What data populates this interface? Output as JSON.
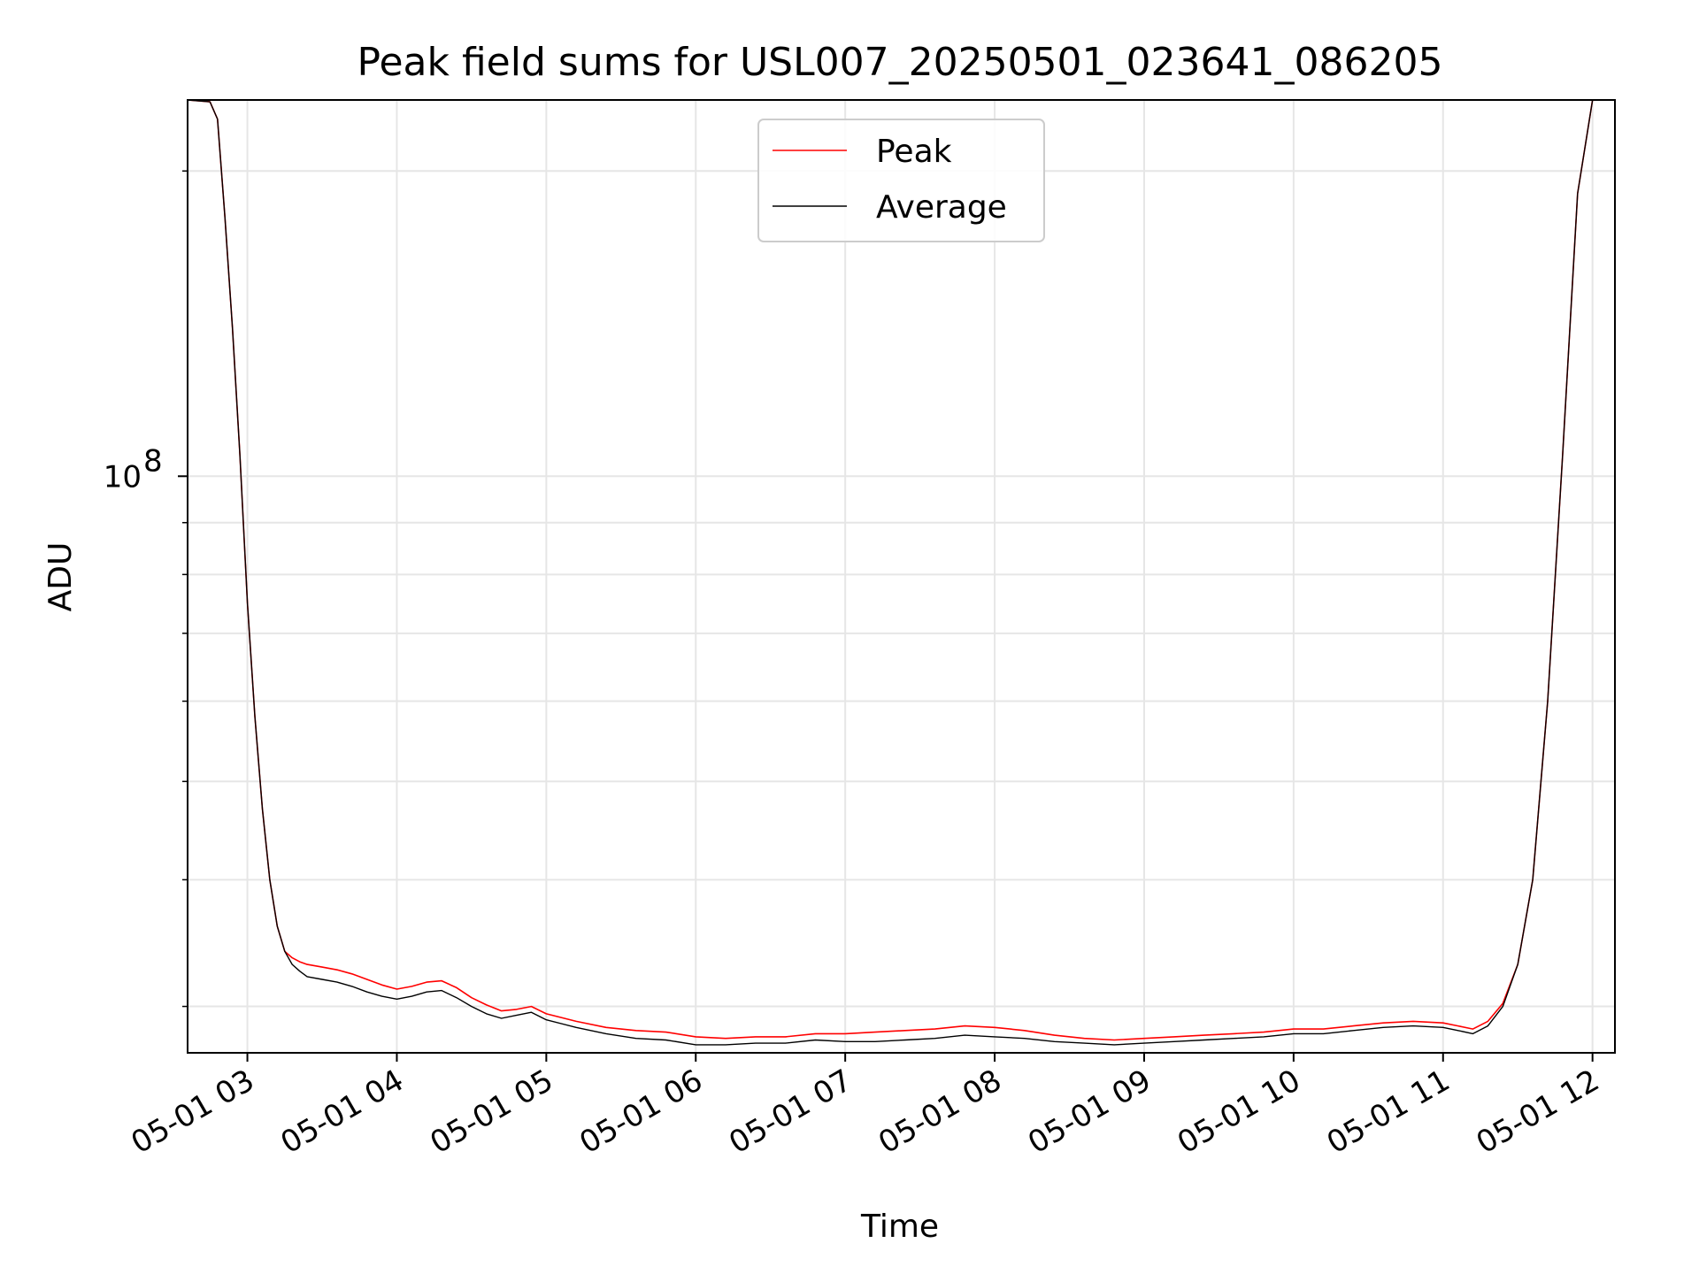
{
  "chart_data": {
    "type": "line",
    "title": "Peak field sums for USL007_20250501_023641_086205",
    "xlabel": "Time",
    "ylabel": "ADU",
    "y_scale": "log",
    "ylim": [
      27000000,
      235000000
    ],
    "xlim_hours": [
      2.6,
      12.15
    ],
    "grid": true,
    "legend_position": "top-center",
    "x_ticks": [
      {
        "value": 3,
        "label": "05-01 03"
      },
      {
        "value": 4,
        "label": "05-01 04"
      },
      {
        "value": 5,
        "label": "05-01 05"
      },
      {
        "value": 6,
        "label": "05-01 06"
      },
      {
        "value": 7,
        "label": "05-01 07"
      },
      {
        "value": 8,
        "label": "05-01 08"
      },
      {
        "value": 9,
        "label": "05-01 09"
      },
      {
        "value": 10,
        "label": "05-01 10"
      },
      {
        "value": 11,
        "label": "05-01 11"
      },
      {
        "value": 12,
        "label": "05-01 12"
      }
    ],
    "y_major_ticks": [
      {
        "value": 100000000,
        "base": "10",
        "exponent": "8"
      }
    ],
    "y_minor_ticks": [
      30000000,
      40000000,
      50000000,
      60000000,
      70000000,
      80000000,
      90000000,
      200000000
    ],
    "series": [
      {
        "name": "Peak",
        "color": "#ff0000",
        "x": [
          2.6,
          2.75,
          2.8,
          2.85,
          2.9,
          2.95,
          3.0,
          3.05,
          3.1,
          3.15,
          3.2,
          3.25,
          3.3,
          3.35,
          3.4,
          3.5,
          3.6,
          3.7,
          3.8,
          3.9,
          4.0,
          4.1,
          4.2,
          4.3,
          4.4,
          4.5,
          4.6,
          4.7,
          4.8,
          4.9,
          5.0,
          5.2,
          5.4,
          5.6,
          5.8,
          6.0,
          6.2,
          6.4,
          6.6,
          6.8,
          7.0,
          7.2,
          7.4,
          7.6,
          7.8,
          8.0,
          8.2,
          8.4,
          8.6,
          8.8,
          9.0,
          9.2,
          9.4,
          9.6,
          9.8,
          10.0,
          10.2,
          10.4,
          10.6,
          10.8,
          11.0,
          11.1,
          11.2,
          11.3,
          11.4,
          11.5,
          11.6,
          11.7,
          11.8,
          11.9,
          12.0
        ],
        "y": [
          235000000,
          234000000,
          225000000,
          180000000,
          140000000,
          105000000,
          75000000,
          58000000,
          47000000,
          40000000,
          36000000,
          34000000,
          33500000,
          33200000,
          33000000,
          32800000,
          32600000,
          32300000,
          31900000,
          31500000,
          31200000,
          31400000,
          31700000,
          31800000,
          31300000,
          30600000,
          30100000,
          29700000,
          29800000,
          30000000,
          29500000,
          29000000,
          28600000,
          28400000,
          28300000,
          28000000,
          27900000,
          28000000,
          28000000,
          28200000,
          28200000,
          28300000,
          28400000,
          28500000,
          28700000,
          28600000,
          28400000,
          28100000,
          27900000,
          27800000,
          27900000,
          28000000,
          28100000,
          28200000,
          28300000,
          28500000,
          28500000,
          28700000,
          28900000,
          29000000,
          28900000,
          28700000,
          28500000,
          29000000,
          30200000,
          33000000,
          40000000,
          60000000,
          105000000,
          190000000,
          235000000
        ]
      },
      {
        "name": "Average",
        "color": "#000000",
        "x": [
          2.6,
          2.75,
          2.8,
          2.85,
          2.9,
          2.95,
          3.0,
          3.05,
          3.1,
          3.15,
          3.2,
          3.25,
          3.3,
          3.35,
          3.4,
          3.5,
          3.6,
          3.7,
          3.8,
          3.9,
          4.0,
          4.1,
          4.2,
          4.3,
          4.4,
          4.5,
          4.6,
          4.7,
          4.8,
          4.9,
          5.0,
          5.2,
          5.4,
          5.6,
          5.8,
          6.0,
          6.2,
          6.4,
          6.6,
          6.8,
          7.0,
          7.2,
          7.4,
          7.6,
          7.8,
          8.0,
          8.2,
          8.4,
          8.6,
          8.8,
          9.0,
          9.2,
          9.4,
          9.6,
          9.8,
          10.0,
          10.2,
          10.4,
          10.6,
          10.8,
          11.0,
          11.1,
          11.2,
          11.3,
          11.4,
          11.5,
          11.6,
          11.7,
          11.8,
          11.9,
          12.0
        ],
        "y": [
          235000000,
          234000000,
          225000000,
          180000000,
          140000000,
          105000000,
          75000000,
          58000000,
          47000000,
          40000000,
          36000000,
          34000000,
          33000000,
          32500000,
          32100000,
          31900000,
          31700000,
          31400000,
          31000000,
          30700000,
          30500000,
          30700000,
          31000000,
          31100000,
          30600000,
          30000000,
          29500000,
          29200000,
          29400000,
          29600000,
          29100000,
          28600000,
          28200000,
          27900000,
          27800000,
          27500000,
          27500000,
          27600000,
          27600000,
          27800000,
          27700000,
          27700000,
          27800000,
          27900000,
          28100000,
          28000000,
          27900000,
          27700000,
          27600000,
          27500000,
          27600000,
          27700000,
          27800000,
          27900000,
          28000000,
          28200000,
          28200000,
          28400000,
          28600000,
          28700000,
          28600000,
          28400000,
          28200000,
          28700000,
          30000000,
          33000000,
          40000000,
          60000000,
          105000000,
          190000000,
          235000000
        ]
      }
    ]
  }
}
